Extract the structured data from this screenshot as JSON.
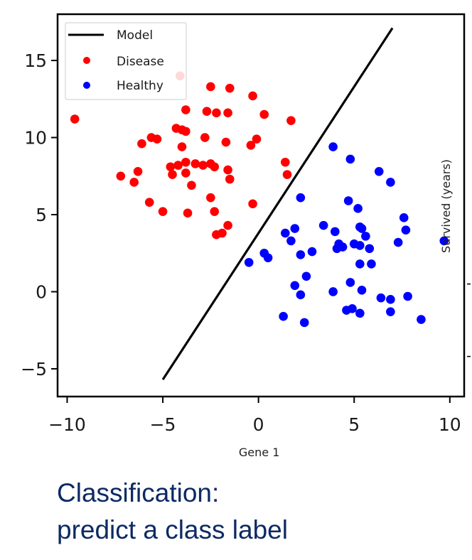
{
  "chart_data": {
    "type": "scatter",
    "title": "",
    "xlabel": "Gene 1",
    "ylabel": "Survived (years)",
    "xlim": [
      -10.5,
      10.75
    ],
    "ylim": [
      -6.8,
      18.0
    ],
    "xticks": [
      -10,
      -5,
      0,
      5,
      10
    ],
    "xtick_labels": [
      "−10",
      "−5",
      "0",
      "5",
      "10"
    ],
    "yticks": [
      -5,
      0,
      5,
      10,
      15
    ],
    "ytick_labels": [
      "−5",
      "0",
      "5",
      "10",
      "15"
    ],
    "grid": false,
    "legend": {
      "placement": "top-left",
      "entries": [
        {
          "label": "Model",
          "kind": "line",
          "color": "#000000"
        },
        {
          "label": "Disease",
          "kind": "marker",
          "color": "#ff0000"
        },
        {
          "label": "Healthy",
          "kind": "marker",
          "color": "#0000ff"
        }
      ]
    },
    "model_line": {
      "name": "Model",
      "color": "#000000",
      "x": [
        -5.0,
        7.0
      ],
      "y": [
        -5.7,
        17.1
      ]
    },
    "series": [
      {
        "name": "Disease",
        "color": "#ff0000",
        "points": [
          [
            -9.6,
            11.2
          ],
          [
            -4.1,
            14.0
          ],
          [
            -2.5,
            13.3
          ],
          [
            -1.5,
            13.2
          ],
          [
            -0.3,
            12.7
          ],
          [
            -3.8,
            11.8
          ],
          [
            -2.7,
            11.7
          ],
          [
            -2.2,
            11.6
          ],
          [
            -1.6,
            11.6
          ],
          [
            0.3,
            11.5
          ],
          [
            1.7,
            11.1
          ],
          [
            -4.3,
            10.6
          ],
          [
            -4.0,
            10.5
          ],
          [
            -3.8,
            10.4
          ],
          [
            -5.6,
            10.0
          ],
          [
            -5.3,
            9.9
          ],
          [
            -2.8,
            10.0
          ],
          [
            -0.1,
            9.9
          ],
          [
            -6.1,
            9.6
          ],
          [
            -1.7,
            9.7
          ],
          [
            -4.0,
            9.4
          ],
          [
            -0.4,
            9.5
          ],
          [
            -4.6,
            8.1
          ],
          [
            -4.2,
            8.2
          ],
          [
            -3.8,
            8.4
          ],
          [
            -3.3,
            8.3
          ],
          [
            -2.9,
            8.2
          ],
          [
            -2.5,
            8.3
          ],
          [
            -2.3,
            8.1
          ],
          [
            -1.6,
            7.9
          ],
          [
            -4.5,
            7.6
          ],
          [
            -3.8,
            7.7
          ],
          [
            -6.3,
            7.8
          ],
          [
            -7.2,
            7.5
          ],
          [
            -6.5,
            7.1
          ],
          [
            -1.5,
            7.3
          ],
          [
            -3.5,
            6.9
          ],
          [
            -2.5,
            6.1
          ],
          [
            1.4,
            8.4
          ],
          [
            1.5,
            7.6
          ],
          [
            -5.7,
            5.8
          ],
          [
            -5.0,
            5.2
          ],
          [
            -3.7,
            5.1
          ],
          [
            -2.3,
            5.2
          ],
          [
            -0.3,
            5.7
          ],
          [
            -2.2,
            3.7
          ],
          [
            -1.9,
            3.8
          ],
          [
            -1.6,
            4.3
          ]
        ]
      },
      {
        "name": "Healthy",
        "color": "#0000ff",
        "points": [
          [
            3.9,
            9.4
          ],
          [
            4.8,
            8.6
          ],
          [
            6.3,
            7.8
          ],
          [
            6.9,
            7.1
          ],
          [
            2.2,
            6.1
          ],
          [
            4.7,
            5.9
          ],
          [
            5.2,
            5.4
          ],
          [
            7.6,
            4.8
          ],
          [
            7.7,
            4.0
          ],
          [
            3.4,
            4.3
          ],
          [
            4.0,
            3.9
          ],
          [
            5.3,
            4.2
          ],
          [
            5.4,
            4.1
          ],
          [
            5.6,
            3.6
          ],
          [
            1.4,
            3.8
          ],
          [
            1.9,
            4.1
          ],
          [
            1.7,
            3.3
          ],
          [
            4.2,
            3.1
          ],
          [
            4.4,
            2.9
          ],
          [
            4.1,
            2.8
          ],
          [
            5.0,
            3.1
          ],
          [
            5.3,
            3.0
          ],
          [
            5.8,
            2.8
          ],
          [
            7.3,
            3.2
          ],
          [
            9.7,
            3.3
          ],
          [
            0.3,
            2.5
          ],
          [
            0.5,
            2.2
          ],
          [
            2.2,
            2.4
          ],
          [
            2.8,
            2.6
          ],
          [
            -0.5,
            1.9
          ],
          [
            5.3,
            1.8
          ],
          [
            5.9,
            1.8
          ],
          [
            2.5,
            1.0
          ],
          [
            1.9,
            0.4
          ],
          [
            4.8,
            0.6
          ],
          [
            3.9,
            0.0
          ],
          [
            5.4,
            0.1
          ],
          [
            2.2,
            -0.2
          ],
          [
            6.4,
            -0.4
          ],
          [
            6.9,
            -0.5
          ],
          [
            7.8,
            -0.3
          ],
          [
            4.6,
            -1.2
          ],
          [
            4.9,
            -1.1
          ],
          [
            5.3,
            -1.4
          ],
          [
            6.9,
            -1.3
          ],
          [
            1.3,
            -1.6
          ],
          [
            2.4,
            -2.0
          ],
          [
            8.5,
            -1.8
          ]
        ]
      }
    ]
  },
  "caption": {
    "line1": "Classification:",
    "line2": "predict a class label"
  }
}
